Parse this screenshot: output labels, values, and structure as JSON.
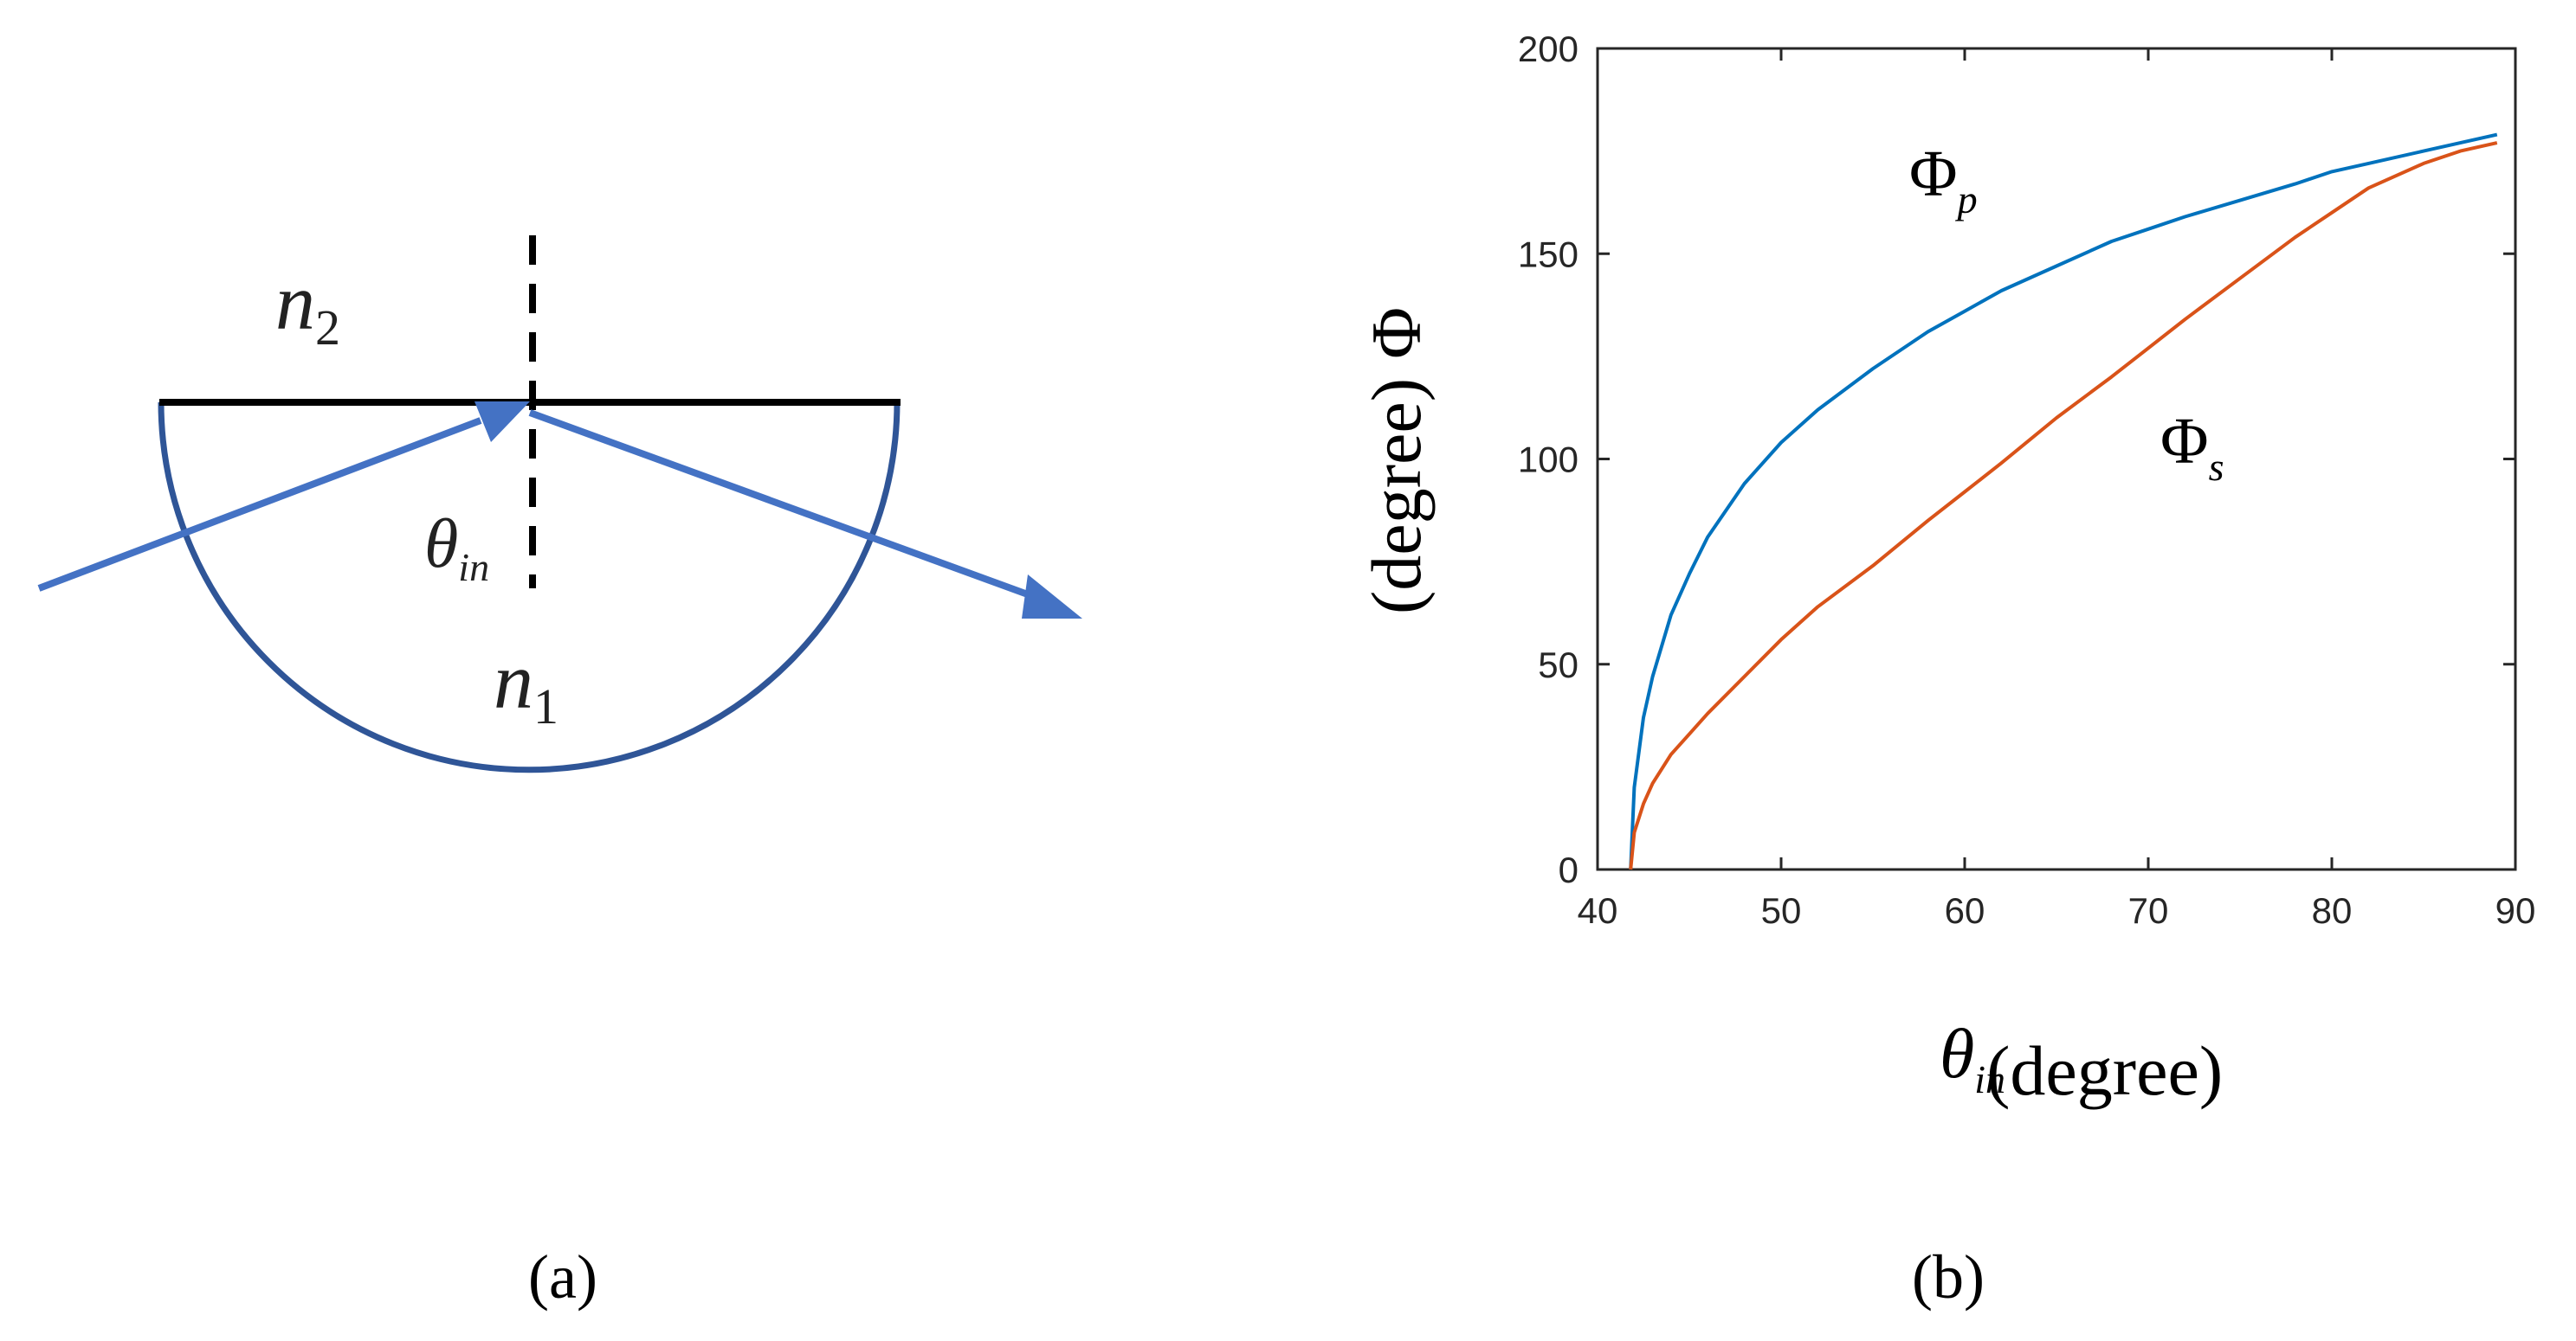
{
  "panel_a": {
    "caption": "(a)",
    "medium_top_label": "n",
    "medium_top_sub": "2",
    "medium_bottom_label": "n",
    "medium_bottom_sub": "1",
    "angle_label": "θ",
    "angle_sub": "in",
    "colors": {
      "ray": "#4472c4",
      "hemisphere": "#2f5597",
      "interface": "#000000",
      "normal": "#000000"
    },
    "icons": [
      "incident-ray-arrow",
      "reflected-ray-arrow",
      "hemisphere-prism",
      "surface-normal-dashed"
    ]
  },
  "panel_b": {
    "caption": "(b)",
    "chart_data": {
      "type": "line",
      "title": "",
      "xlabel_symbol": "θ",
      "xlabel_sub": "in",
      "xlabel_unit": "(degree)",
      "ylabel_symbol": "Φ",
      "ylabel_unit": "(degree)",
      "xlim": [
        40,
        90
      ],
      "ylim": [
        0,
        200
      ],
      "xticks": [
        40,
        50,
        60,
        70,
        80,
        90
      ],
      "yticks": [
        0,
        50,
        100,
        150,
        200
      ],
      "grid": false,
      "series": [
        {
          "name": "Φ",
          "name_sub": "p",
          "color": "#0072bd",
          "x": [
            41.8,
            42.0,
            42.5,
            43,
            44,
            45,
            46,
            48,
            50,
            52,
            55,
            58,
            60,
            62,
            65,
            68,
            70,
            72,
            75,
            78,
            80,
            82,
            85,
            87,
            89
          ],
          "y": [
            0,
            20,
            37,
            47,
            62,
            72,
            81,
            94,
            104,
            112,
            122,
            131,
            136,
            141,
            147,
            153,
            156,
            159,
            163,
            167,
            170,
            172,
            175,
            177,
            179
          ]
        },
        {
          "name": "Φ",
          "name_sub": "s",
          "color": "#d95319",
          "x": [
            41.8,
            42.0,
            42.5,
            43,
            44,
            45,
            46,
            48,
            50,
            52,
            55,
            58,
            60,
            62,
            65,
            68,
            70,
            72,
            75,
            78,
            80,
            82,
            85,
            87,
            89
          ],
          "y": [
            0,
            9,
            16,
            21,
            28,
            33,
            38,
            47,
            56,
            64,
            74,
            85,
            92,
            99,
            110,
            120,
            127,
            134,
            144,
            154,
            160,
            166,
            172,
            175,
            177
          ]
        }
      ]
    }
  }
}
